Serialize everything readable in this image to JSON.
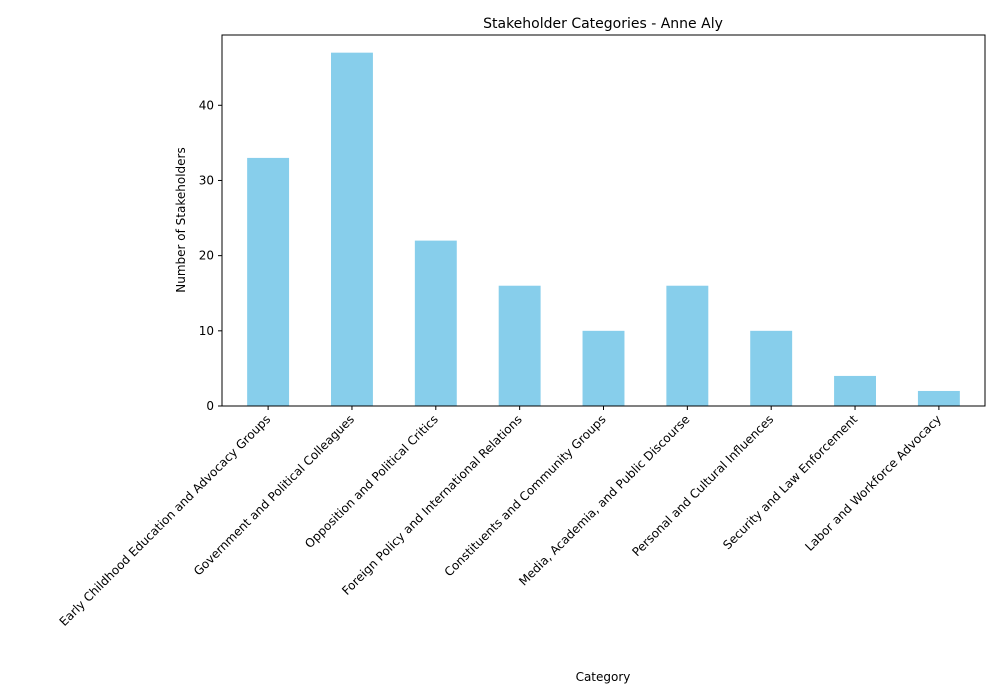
{
  "chart_data": {
    "type": "bar",
    "title": "Stakeholder Categories - Anne Aly",
    "xlabel": "Category",
    "ylabel": "Number of Stakeholders",
    "categories": [
      "Early Childhood Education and Advocacy Groups",
      "Government and Political Colleagues",
      "Opposition and Political Critics",
      "Foreign Policy and International Relations",
      "Constituents and Community Groups",
      "Media, Academia, and Public Discourse",
      "Personal and Cultural Influences",
      "Security and Law Enforcement",
      "Labor and Workforce Advocacy"
    ],
    "values": [
      33,
      47,
      22,
      16,
      10,
      16,
      10,
      4,
      2
    ],
    "ylim": [
      0,
      49.35
    ],
    "yticks": [
      0,
      10,
      20,
      30,
      40
    ],
    "grid": false,
    "bar_color": "#87ceeb"
  }
}
